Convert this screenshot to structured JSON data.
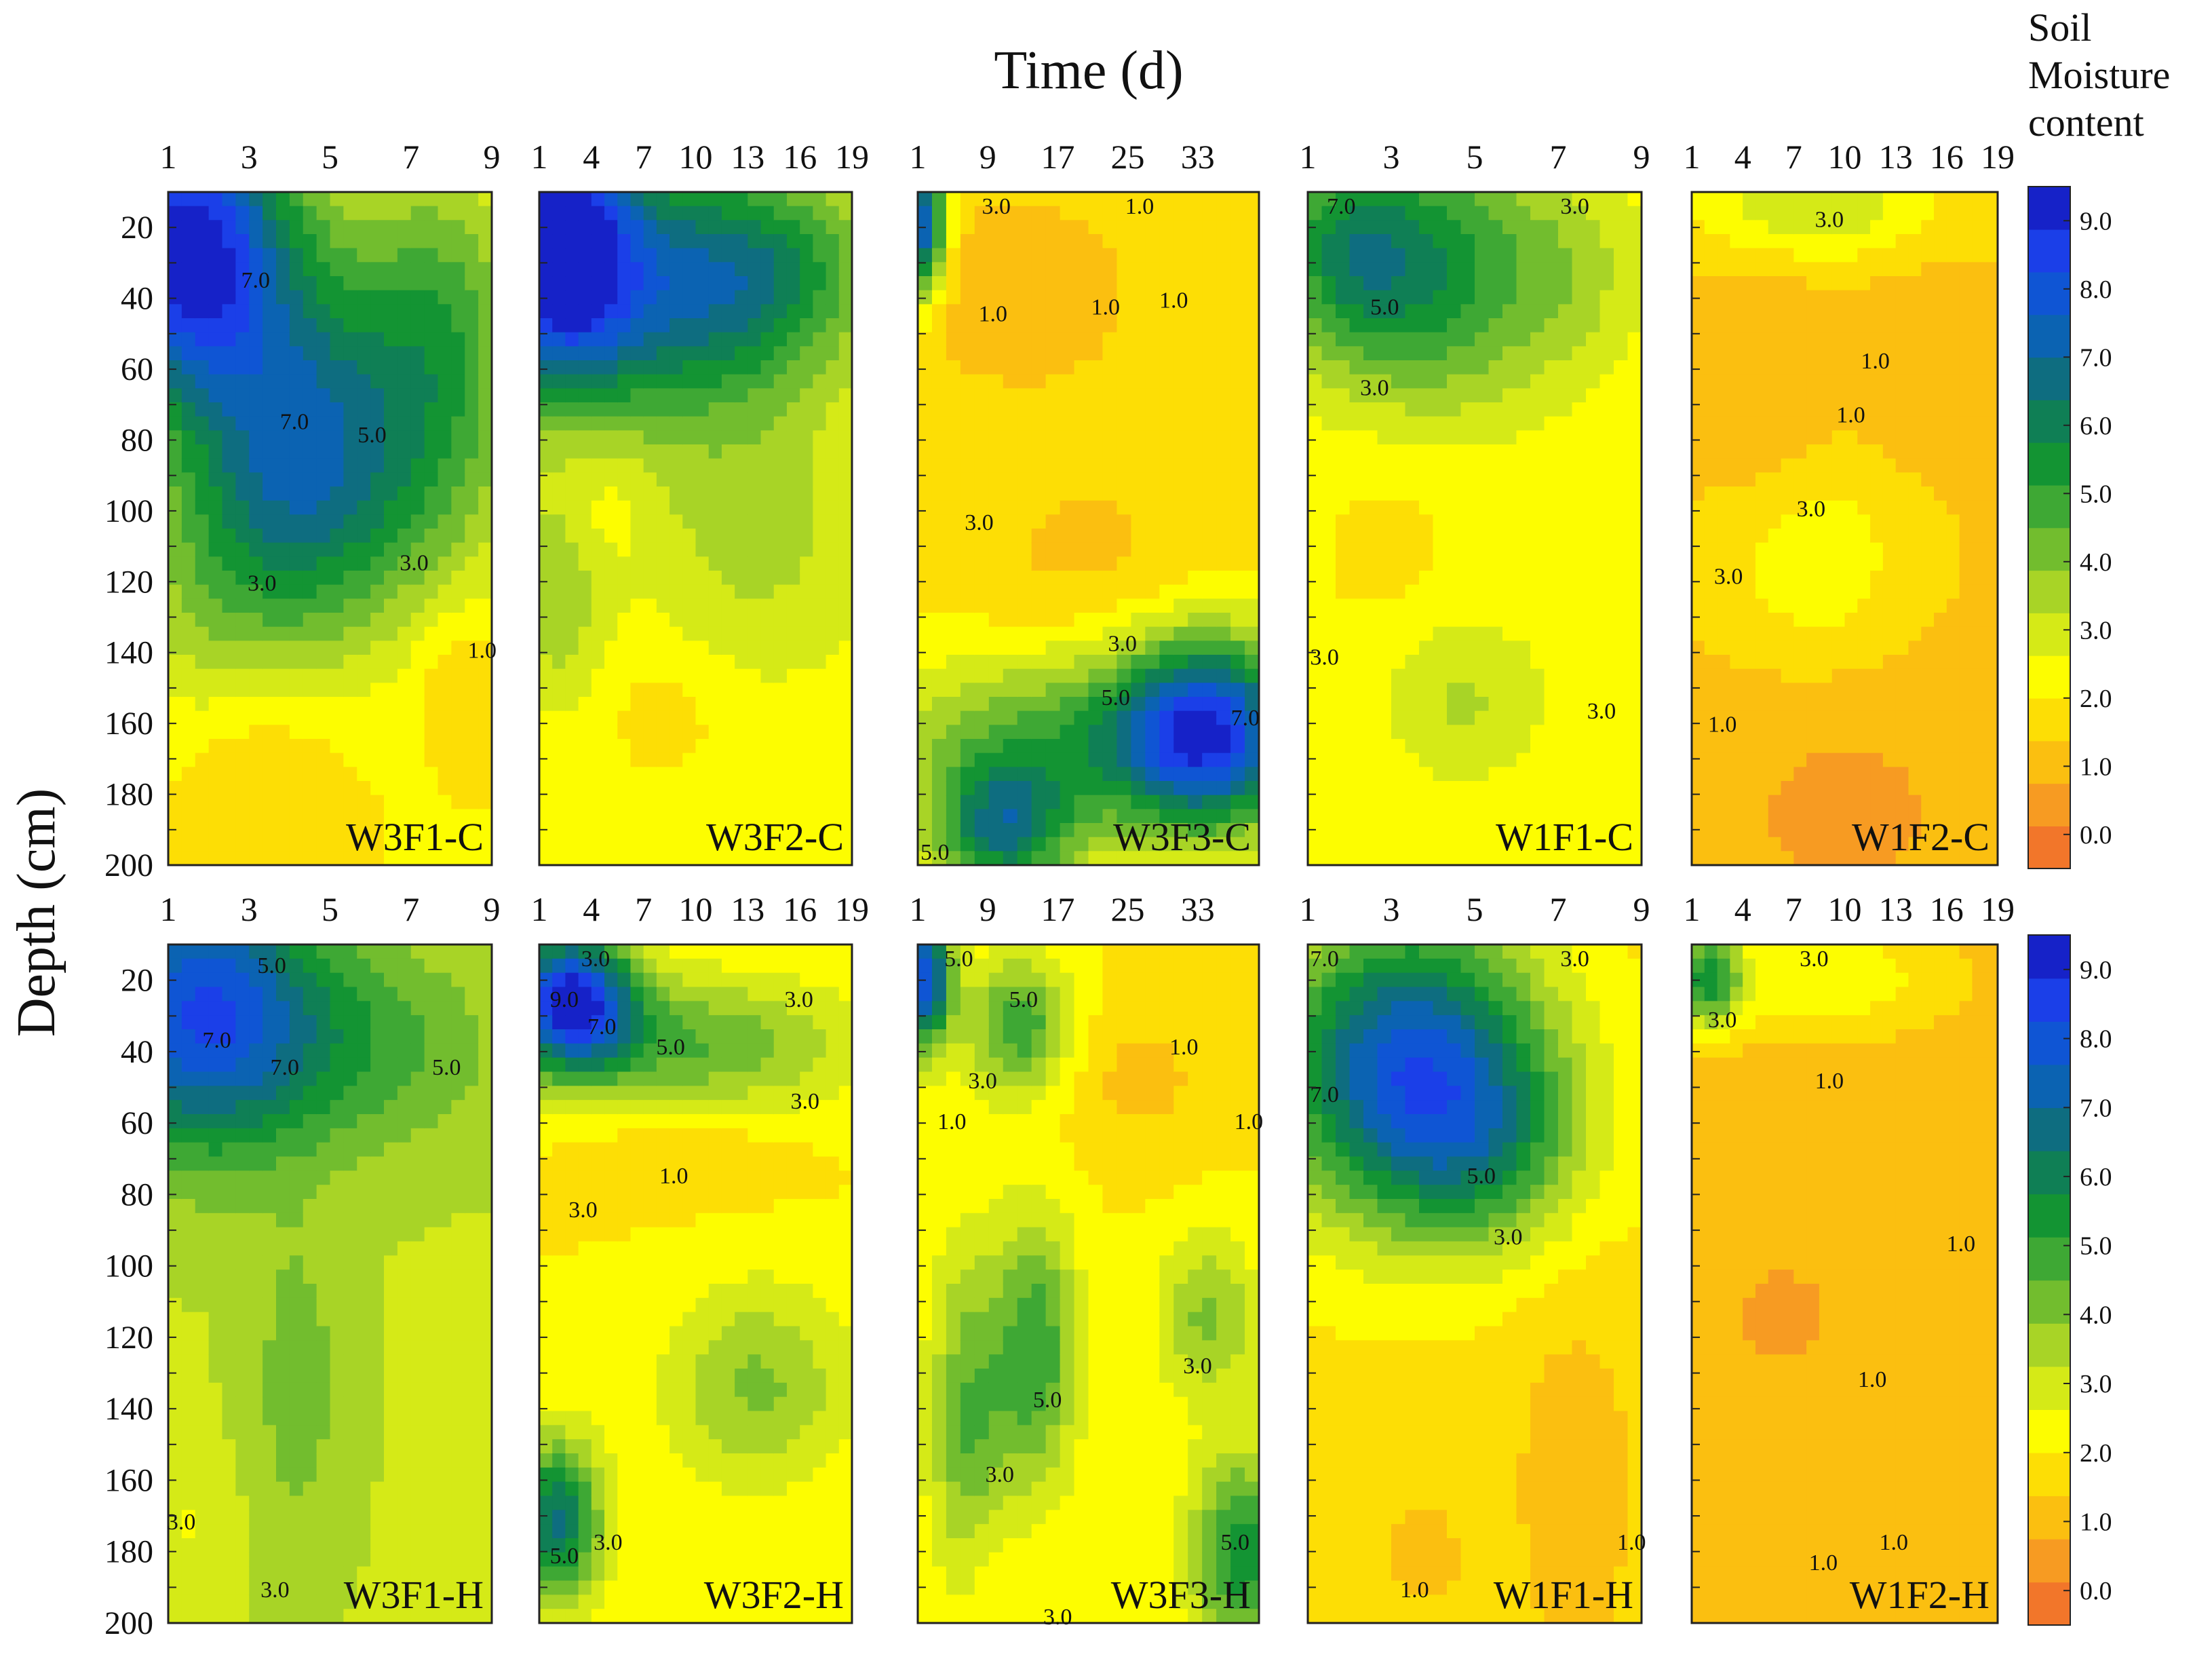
{
  "chart_data": {
    "type": "heatmap",
    "title": "",
    "xlabel": "Time (d)",
    "ylabel": "Depth (cm)",
    "depth_ticks": [
      20,
      40,
      60,
      80,
      100,
      120,
      140,
      160,
      180,
      200
    ],
    "depth_range": [
      10,
      200
    ],
    "colorbar": {
      "title_lines": [
        "Soil",
        "Moisture",
        "content"
      ],
      "ticks": [
        "9.0",
        "8.0",
        "7.0",
        "6.0",
        "5.0",
        "4.0",
        "3.0",
        "2.0",
        "1.0",
        "0.0"
      ],
      "range": [
        -0.5,
        9.5
      ],
      "colors": [
        "#f2762a",
        "#f79b22",
        "#fbbf10",
        "#fdde05",
        "#fdfd00",
        "#d5ea17",
        "#a8d426",
        "#72bd2e",
        "#3ea834",
        "#139433",
        "#0f7f55",
        "#0e6d80",
        "#0b63b2",
        "#0f55d4",
        "#1b3fe8",
        "#1622c8"
      ]
    },
    "panels": [
      {
        "label": "W3F1-C",
        "x_ticks": [
          "1",
          "3",
          "5",
          "7",
          "9"
        ],
        "x_range": [
          1,
          9
        ],
        "base": 2.0,
        "blobs": [
          [
            0.05,
            0.08,
            0.3,
            0.22,
            7
          ],
          [
            0.4,
            0.35,
            0.35,
            0.3,
            4
          ],
          [
            0.85,
            0.2,
            0.25,
            0.25,
            2.5
          ],
          [
            0.6,
            0.45,
            0.5,
            0.2,
            1.5
          ],
          [
            0.1,
            0.6,
            0.3,
            0.2,
            1
          ],
          [
            0.3,
            0.85,
            0.25,
            0.12,
            -0.8
          ],
          [
            0.9,
            0.72,
            0.12,
            0.1,
            -0.8
          ]
        ],
        "contours": [
          {
            "text": "7.0",
            "u": 0.27,
            "v": 0.13
          },
          {
            "text": "7.0",
            "u": 0.39,
            "v": 0.34
          },
          {
            "text": "5.0",
            "u": 0.63,
            "v": 0.36
          },
          {
            "text": "3.0",
            "u": 0.29,
            "v": 0.58
          },
          {
            "text": "3.0",
            "u": 0.76,
            "v": 0.55
          },
          {
            "text": "1.0",
            "u": 0.97,
            "v": 0.68
          }
        ]
      },
      {
        "label": "W3F2-C",
        "x_ticks": [
          "1",
          "4",
          "7",
          "10",
          "13",
          "16",
          "19"
        ],
        "x_range": [
          1,
          19
        ],
        "base": 2.3,
        "blobs": [
          [
            0.05,
            0.08,
            0.25,
            0.2,
            7
          ],
          [
            0.4,
            0.15,
            0.4,
            0.2,
            3.5
          ],
          [
            0.75,
            0.12,
            0.35,
            0.15,
            2.5
          ],
          [
            0.7,
            0.5,
            0.35,
            0.2,
            1.2
          ],
          [
            0.05,
            0.6,
            0.15,
            0.15,
            1.5
          ],
          [
            0.4,
            0.78,
            0.2,
            0.1,
            -0.6
          ],
          [
            0.2,
            0.45,
            0.12,
            0.1,
            -0.5
          ]
        ],
        "contours": []
      },
      {
        "label": "W3F3-C",
        "x_ticks": [
          "1",
          "9",
          "17",
          "25",
          "33"
        ],
        "x_range": [
          1,
          40
        ],
        "base": 1.8,
        "blobs": [
          [
            0.3,
            0.15,
            0.35,
            0.15,
            -0.9
          ],
          [
            0.5,
            0.55,
            0.35,
            0.15,
            -0.6
          ],
          [
            0.02,
            0.05,
            0.06,
            0.1,
            6
          ],
          [
            0.5,
            0.82,
            0.6,
            0.14,
            3
          ],
          [
            0.85,
            0.8,
            0.25,
            0.14,
            5.5
          ],
          [
            0.25,
            0.95,
            0.2,
            0.1,
            4
          ]
        ],
        "contours": [
          {
            "text": "3.0",
            "u": 0.23,
            "v": 0.02
          },
          {
            "text": "1.0",
            "u": 0.65,
            "v": 0.02
          },
          {
            "text": "1.0",
            "u": 0.22,
            "v": 0.18
          },
          {
            "text": "1.0",
            "u": 0.55,
            "v": 0.17
          },
          {
            "text": "1.0",
            "u": 0.75,
            "v": 0.16
          },
          {
            "text": "3.0",
            "u": 0.18,
            "v": 0.49
          },
          {
            "text": "3.0",
            "u": 0.6,
            "v": 0.67
          },
          {
            "text": "5.0",
            "u": 0.58,
            "v": 0.75
          },
          {
            "text": "7.0",
            "u": 0.96,
            "v": 0.78
          },
          {
            "text": "5.0",
            "u": 0.05,
            "v": 0.98
          }
        ]
      },
      {
        "label": "W1F1-C",
        "x_ticks": [
          "1",
          "3",
          "5",
          "7",
          "9"
        ],
        "x_range": [
          1,
          9
        ],
        "base": 2.2,
        "blobs": [
          [
            0.35,
            0.12,
            0.35,
            0.2,
            3.5
          ],
          [
            0.1,
            0.08,
            0.2,
            0.15,
            2
          ],
          [
            0.8,
            0.12,
            0.2,
            0.15,
            1
          ],
          [
            0.25,
            0.5,
            0.25,
            0.25,
            -0.4
          ],
          [
            0.45,
            0.75,
            0.25,
            0.12,
            1.2
          ]
        ],
        "contours": [
          {
            "text": "7.0",
            "u": 0.1,
            "v": 0.02
          },
          {
            "text": "5.0",
            "u": 0.23,
            "v": 0.17
          },
          {
            "text": "3.0",
            "u": 0.2,
            "v": 0.29
          },
          {
            "text": "3.0",
            "u": 0.8,
            "v": 0.02
          },
          {
            "text": "3.0",
            "u": 0.05,
            "v": 0.69
          },
          {
            "text": "3.0",
            "u": 0.88,
            "v": 0.77
          }
        ]
      },
      {
        "label": "W1F2-C",
        "x_ticks": [
          "1",
          "4",
          "7",
          "10",
          "13",
          "16",
          "19"
        ],
        "x_range": [
          1,
          19
        ],
        "base": 1.3,
        "blobs": [
          [
            0.4,
            0.02,
            0.4,
            0.08,
            2
          ],
          [
            0.25,
            0.3,
            0.2,
            0.2,
            -0.5
          ],
          [
            0.7,
            0.25,
            0.15,
            0.15,
            -0.4
          ],
          [
            0.4,
            0.55,
            0.3,
            0.15,
            1.2
          ],
          [
            0.5,
            0.92,
            0.5,
            0.2,
            -0.7
          ]
        ],
        "contours": [
          {
            "text": "3.0",
            "u": 0.45,
            "v": 0.04
          },
          {
            "text": "1.0",
            "u": 0.6,
            "v": 0.25
          },
          {
            "text": "1.0",
            "u": 0.52,
            "v": 0.33
          },
          {
            "text": "3.0",
            "u": 0.39,
            "v": 0.47
          },
          {
            "text": "3.0",
            "u": 0.12,
            "v": 0.57
          },
          {
            "text": "1.0",
            "u": 0.1,
            "v": 0.79
          }
        ]
      },
      {
        "label": "W3F1-H",
        "x_ticks": [
          "1",
          "3",
          "5",
          "7",
          "9"
        ],
        "x_range": [
          1,
          9
        ],
        "base": 3.2,
        "blobs": [
          [
            0.1,
            0.1,
            0.35,
            0.2,
            5
          ],
          [
            0.6,
            0.15,
            0.4,
            0.15,
            1.5
          ],
          [
            0.4,
            0.65,
            0.15,
            0.25,
            1
          ],
          [
            0.05,
            0.85,
            0.15,
            0.1,
            -0.6
          ]
        ],
        "contours": [
          {
            "text": "5.0",
            "u": 0.32,
            "v": 0.03
          },
          {
            "text": "7.0",
            "u": 0.15,
            "v": 0.14
          },
          {
            "text": "7.0",
            "u": 0.36,
            "v": 0.18
          },
          {
            "text": "5.0",
            "u": 0.86,
            "v": 0.18
          },
          {
            "text": "3.0",
            "u": 0.04,
            "v": 0.85
          },
          {
            "text": "3.0",
            "u": 0.33,
            "v": 0.95
          }
        ]
      },
      {
        "label": "W3F2-H",
        "x_ticks": [
          "1",
          "4",
          "7",
          "10",
          "13",
          "16",
          "19"
        ],
        "x_range": [
          1,
          19
        ],
        "base": 2.0,
        "blobs": [
          [
            0.1,
            0.08,
            0.2,
            0.1,
            7
          ],
          [
            0.5,
            0.15,
            0.5,
            0.1,
            2.5
          ],
          [
            0.45,
            0.3,
            0.35,
            0.08,
            -0.6
          ],
          [
            0.7,
            0.65,
            0.3,
            0.15,
            2
          ],
          [
            0.05,
            0.85,
            0.15,
            0.12,
            4.5
          ]
        ],
        "contours": [
          {
            "text": "3.0",
            "u": 0.18,
            "v": 0.02
          },
          {
            "text": "9.0",
            "u": 0.08,
            "v": 0.08
          },
          {
            "text": "7.0",
            "u": 0.2,
            "v": 0.12
          },
          {
            "text": "5.0",
            "u": 0.42,
            "v": 0.15
          },
          {
            "text": "3.0",
            "u": 0.83,
            "v": 0.08
          },
          {
            "text": "3.0",
            "u": 0.85,
            "v": 0.23
          },
          {
            "text": "1.0",
            "u": 0.43,
            "v": 0.34
          },
          {
            "text": "3.0",
            "u": 0.14,
            "v": 0.39
          },
          {
            "text": "5.0",
            "u": 0.08,
            "v": 0.9
          },
          {
            "text": "3.0",
            "u": 0.22,
            "v": 0.88
          }
        ]
      },
      {
        "label": "W3F3-H",
        "x_ticks": [
          "1",
          "9",
          "17",
          "25",
          "33"
        ],
        "x_range": [
          1,
          40
        ],
        "base": 2.0,
        "blobs": [
          [
            0.02,
            0.05,
            0.08,
            0.1,
            6
          ],
          [
            0.3,
            0.12,
            0.15,
            0.1,
            3
          ],
          [
            0.65,
            0.2,
            0.25,
            0.12,
            -0.8
          ],
          [
            0.35,
            0.6,
            0.12,
            0.2,
            3
          ],
          [
            0.15,
            0.7,
            0.12,
            0.25,
            2.5
          ],
          [
            0.85,
            0.55,
            0.15,
            0.12,
            2
          ],
          [
            0.95,
            0.9,
            0.15,
            0.15,
            3.5
          ],
          [
            0.2,
            0.9,
            0.08,
            0.1,
            -0.5
          ]
        ],
        "contours": [
          {
            "text": "5.0",
            "u": 0.12,
            "v": 0.02
          },
          {
            "text": "5.0",
            "u": 0.31,
            "v": 0.08
          },
          {
            "text": "3.0",
            "u": 0.19,
            "v": 0.2
          },
          {
            "text": "1.0",
            "u": 0.1,
            "v": 0.26
          },
          {
            "text": "1.0",
            "u": 0.78,
            "v": 0.15
          },
          {
            "text": "1.0",
            "u": 0.97,
            "v": 0.26
          },
          {
            "text": "5.0",
            "u": 0.38,
            "v": 0.67
          },
          {
            "text": "3.0",
            "u": 0.82,
            "v": 0.62
          },
          {
            "text": "3.0",
            "u": 0.24,
            "v": 0.78
          },
          {
            "text": "5.0",
            "u": 0.93,
            "v": 0.88
          },
          {
            "text": "3.0",
            "u": 0.41,
            "v": 0.99
          }
        ]
      },
      {
        "label": "W1F1-H",
        "x_ticks": [
          "1",
          "3",
          "5",
          "7",
          "9"
        ],
        "x_range": [
          1,
          9
        ],
        "base": 1.8,
        "blobs": [
          [
            0.3,
            0.18,
            0.4,
            0.22,
            6
          ],
          [
            0.55,
            0.3,
            0.3,
            0.15,
            2
          ],
          [
            0.8,
            0.8,
            0.2,
            0.3,
            -0.8
          ],
          [
            0.35,
            0.9,
            0.12,
            0.08,
            -0.8
          ]
        ],
        "contours": [
          {
            "text": "7.0",
            "u": 0.05,
            "v": 0.02
          },
          {
            "text": "3.0",
            "u": 0.8,
            "v": 0.02
          },
          {
            "text": "7.0",
            "u": 0.05,
            "v": 0.22
          },
          {
            "text": "5.0",
            "u": 0.52,
            "v": 0.34
          },
          {
            "text": "3.0",
            "u": 0.6,
            "v": 0.43
          },
          {
            "text": "1.0",
            "u": 0.97,
            "v": 0.88
          },
          {
            "text": "1.0",
            "u": 0.32,
            "v": 0.95
          }
        ]
      },
      {
        "label": "W1F2-H",
        "x_ticks": [
          "1",
          "4",
          "7",
          "10",
          "13",
          "16",
          "19"
        ],
        "x_range": [
          1,
          19
        ],
        "base": 1.0,
        "blobs": [
          [
            0.05,
            0.05,
            0.12,
            0.08,
            4
          ],
          [
            0.45,
            0.05,
            0.4,
            0.08,
            1.5
          ],
          [
            0.3,
            0.55,
            0.3,
            0.15,
            -0.3
          ],
          [
            0.6,
            0.9,
            0.3,
            0.12,
            -0.2
          ]
        ],
        "contours": [
          {
            "text": "3.0",
            "u": 0.4,
            "v": 0.02
          },
          {
            "text": "3.0",
            "u": 0.1,
            "v": 0.11
          },
          {
            "text": "1.0",
            "u": 0.45,
            "v": 0.2
          },
          {
            "text": "1.0",
            "u": 0.88,
            "v": 0.44
          },
          {
            "text": "1.0",
            "u": 0.59,
            "v": 0.64
          },
          {
            "text": "1.0",
            "u": 0.66,
            "v": 0.88
          },
          {
            "text": "1.0",
            "u": 0.43,
            "v": 0.91
          }
        ]
      }
    ]
  }
}
